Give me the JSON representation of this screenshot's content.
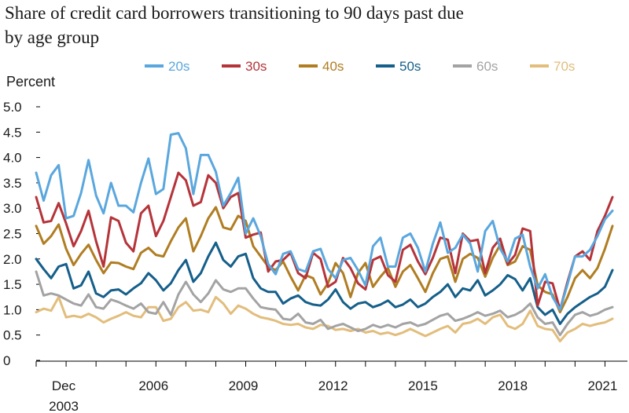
{
  "chart_data": {
    "type": "line",
    "title": [
      "Share of credit card borrowers transitioning to 90 days past due",
      "by age group"
    ],
    "ylabel": "Percent",
    "xlabel": "",
    "ylim": [
      0,
      5.0
    ],
    "yticks": [
      0,
      0.5,
      1.0,
      1.5,
      2.0,
      2.5,
      3.0,
      3.5,
      4.0,
      4.5,
      5.0
    ],
    "ytick_labels": [
      "0",
      "0.5",
      "1.0",
      "1.5",
      "2.0",
      "2.5",
      "3.0",
      "3.5",
      "4.0",
      "4.5",
      "5.0"
    ],
    "xlim": [
      2003.0,
      2022.75
    ],
    "xticks": [
      {
        "x": 2003.92,
        "label": [
          "Dec",
          "2003"
        ]
      },
      {
        "x": 2006.92,
        "label": [
          "2006"
        ]
      },
      {
        "x": 2009.92,
        "label": [
          "2009"
        ]
      },
      {
        "x": 2012.92,
        "label": [
          "2012"
        ]
      },
      {
        "x": 2015.92,
        "label": [
          "2015"
        ]
      },
      {
        "x": 2018.92,
        "label": [
          "2018"
        ]
      },
      {
        "x": 2021.92,
        "label": [
          "2021"
        ]
      }
    ],
    "legend": "top",
    "grid": false,
    "x_start": 2003.0,
    "x_step": 0.25,
    "series": [
      {
        "name": "20s",
        "color": "#5aa7de",
        "values": [
          3.7,
          3.15,
          3.65,
          3.85,
          2.8,
          2.85,
          3.3,
          3.95,
          3.25,
          2.9,
          3.5,
          3.05,
          3.05,
          2.92,
          3.5,
          3.98,
          3.28,
          3.38,
          4.45,
          4.48,
          4.18,
          3.28,
          4.05,
          4.05,
          3.72,
          3.05,
          3.3,
          3.6,
          2.5,
          2.8,
          2.45,
          1.9,
          1.7,
          2.1,
          2.15,
          1.8,
          1.75,
          2.15,
          2.2,
          1.8,
          1.62,
          1.98,
          2.02,
          1.78,
          1.48,
          2.25,
          2.42,
          1.85,
          1.85,
          2.42,
          2.5,
          2.22,
          1.75,
          2.3,
          2.72,
          2.12,
          2.22,
          2.48,
          2.3,
          1.75,
          2.55,
          2.75,
          2.2,
          1.95,
          2.4,
          2.48,
          1.85,
          1.42,
          1.7,
          1.25,
          1.0,
          1.5,
          2.05,
          2.05,
          2.18,
          2.45,
          2.78,
          2.95
        ]
      },
      {
        "name": "30s",
        "color": "#b5343a",
        "values": [
          3.22,
          2.72,
          2.75,
          3.1,
          2.7,
          2.25,
          2.55,
          2.95,
          2.35,
          1.85,
          2.82,
          2.75,
          2.32,
          2.15,
          2.9,
          3.05,
          2.45,
          2.75,
          3.22,
          3.7,
          3.55,
          3.05,
          3.12,
          3.65,
          3.5,
          3.0,
          3.22,
          3.3,
          2.42,
          2.48,
          2.52,
          1.75,
          1.95,
          1.98,
          2.12,
          1.72,
          1.62,
          2.12,
          2.0,
          1.45,
          1.55,
          2.02,
          1.82,
          1.52,
          1.4,
          1.98,
          2.05,
          1.68,
          1.55,
          2.18,
          2.28,
          1.95,
          1.7,
          2.02,
          2.42,
          2.38,
          1.72,
          2.5,
          2.35,
          2.38,
          1.72,
          2.22,
          2.4,
          1.9,
          2.08,
          2.6,
          2.55,
          1.08,
          1.55,
          1.52,
          1.0,
          1.55,
          2.05,
          2.15,
          1.98,
          2.55,
          2.85,
          3.22
        ]
      },
      {
        "name": "40s",
        "color": "#b07d22",
        "values": [
          2.65,
          2.3,
          2.45,
          2.68,
          2.2,
          1.88,
          2.1,
          2.28,
          1.98,
          1.72,
          1.93,
          1.92,
          1.85,
          1.8,
          2.12,
          2.22,
          2.08,
          2.05,
          2.35,
          2.62,
          2.8,
          2.15,
          2.45,
          2.8,
          3.02,
          2.62,
          2.58,
          2.85,
          2.75,
          2.25,
          2.05,
          1.85,
          1.78,
          1.95,
          1.65,
          1.38,
          1.68,
          1.62,
          1.3,
          1.52,
          1.92,
          1.72,
          1.25,
          1.72,
          1.92,
          1.45,
          1.65,
          1.82,
          1.45,
          1.75,
          1.88,
          1.62,
          1.35,
          1.72,
          2.0,
          2.05,
          1.55,
          2.0,
          2.1,
          2.02,
          1.65,
          2.02,
          2.28,
          1.88,
          1.95,
          2.25,
          2.18,
          1.48,
          1.35,
          1.3,
          0.95,
          1.25,
          1.62,
          1.78,
          1.62,
          1.82,
          2.2,
          2.65
        ]
      },
      {
        "name": "50s",
        "color": "#155f8a",
        "values": [
          2.0,
          1.8,
          1.62,
          1.85,
          1.9,
          1.42,
          1.48,
          1.75,
          1.32,
          1.25,
          1.38,
          1.4,
          1.3,
          1.42,
          1.52,
          1.72,
          1.58,
          1.38,
          1.52,
          1.78,
          1.98,
          1.55,
          1.72,
          2.05,
          2.32,
          1.98,
          1.85,
          2.05,
          2.1,
          1.62,
          1.42,
          1.35,
          1.35,
          1.12,
          1.22,
          1.28,
          1.15,
          1.1,
          1.08,
          1.2,
          1.4,
          1.15,
          1.02,
          1.12,
          1.15,
          1.05,
          1.1,
          1.18,
          1.05,
          1.1,
          1.2,
          1.05,
          1.12,
          1.25,
          1.35,
          1.5,
          1.25,
          1.42,
          1.38,
          1.58,
          1.28,
          1.38,
          1.5,
          1.68,
          1.6,
          1.38,
          1.62,
          1.05,
          0.9,
          1.0,
          0.72,
          0.92,
          1.05,
          1.15,
          1.25,
          1.32,
          1.45,
          1.78
        ]
      },
      {
        "name": "60s",
        "color": "#a3a3a3",
        "values": [
          1.75,
          1.28,
          1.32,
          1.28,
          1.2,
          1.12,
          1.08,
          1.3,
          1.05,
          1.02,
          1.2,
          1.15,
          1.08,
          1.02,
          1.12,
          0.95,
          0.92,
          1.15,
          0.9,
          1.3,
          1.55,
          1.3,
          1.15,
          1.32,
          1.58,
          1.4,
          1.35,
          1.42,
          1.42,
          1.22,
          1.05,
          1.02,
          1.0,
          0.82,
          0.8,
          0.92,
          0.75,
          0.72,
          0.8,
          0.62,
          0.68,
          0.72,
          0.65,
          0.58,
          0.62,
          0.7,
          0.65,
          0.7,
          0.65,
          0.72,
          0.75,
          0.68,
          0.72,
          0.8,
          0.88,
          0.92,
          0.78,
          0.82,
          0.88,
          0.95,
          0.88,
          0.92,
          0.98,
          0.85,
          0.9,
          0.98,
          1.12,
          0.85,
          0.72,
          0.75,
          0.5,
          0.72,
          0.9,
          0.95,
          0.88,
          0.92,
          1.0,
          1.05
        ]
      },
      {
        "name": "70s",
        "color": "#e2bd7c",
        "values": [
          0.95,
          1.02,
          0.98,
          1.25,
          0.85,
          0.88,
          0.85,
          0.92,
          0.85,
          0.75,
          0.82,
          0.88,
          0.95,
          0.88,
          0.85,
          1.05,
          1.05,
          0.78,
          0.82,
          1.05,
          1.15,
          0.98,
          1.0,
          0.95,
          1.25,
          1.12,
          0.92,
          1.08,
          1.02,
          0.92,
          0.85,
          0.82,
          0.78,
          0.72,
          0.7,
          0.72,
          0.65,
          0.62,
          0.7,
          0.68,
          0.6,
          0.62,
          0.58,
          0.62,
          0.55,
          0.58,
          0.52,
          0.55,
          0.5,
          0.55,
          0.62,
          0.55,
          0.48,
          0.55,
          0.62,
          0.68,
          0.55,
          0.72,
          0.75,
          0.82,
          0.72,
          0.85,
          0.9,
          0.68,
          0.62,
          0.72,
          0.98,
          0.68,
          0.62,
          0.6,
          0.38,
          0.55,
          0.62,
          0.72,
          0.68,
          0.72,
          0.75,
          0.82
        ]
      }
    ]
  }
}
